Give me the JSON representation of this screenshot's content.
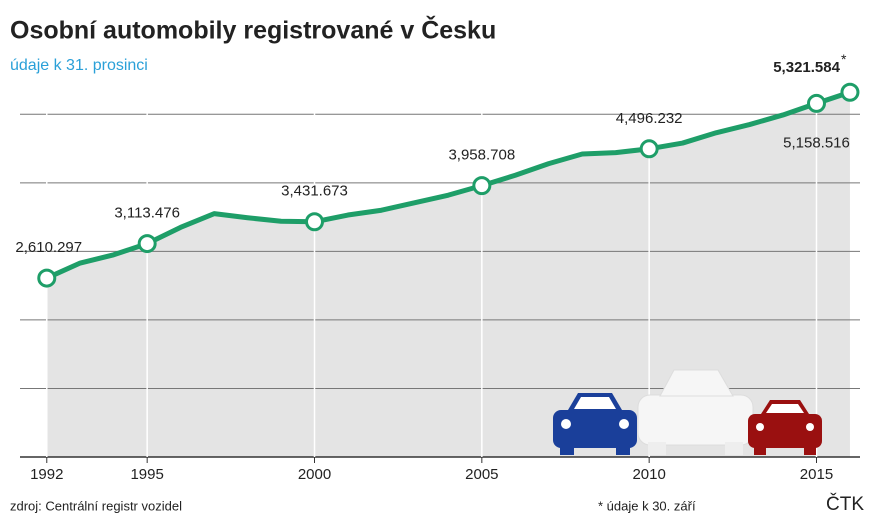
{
  "chart_data": {
    "type": "line",
    "title": "Osobní automobily registrované v Česku",
    "subtitle": "údaje k 31. prosinci",
    "x": [
      1992,
      1993,
      1994,
      1995,
      1996,
      1997,
      1998,
      1999,
      2000,
      2001,
      2002,
      2003,
      2004,
      2005,
      2006,
      2007,
      2008,
      2009,
      2010,
      2011,
      2012,
      2013,
      2014,
      2015,
      2016
    ],
    "series": [
      {
        "name": "Osobní automobily",
        "color": "#1e9e68",
        "values": [
          2610297,
          2830000,
          2950000,
          3113476,
          3350000,
          3550000,
          3490000,
          3440000,
          3431673,
          3530000,
          3600000,
          3710000,
          3820000,
          3958708,
          4110000,
          4280000,
          4420000,
          4440000,
          4496232,
          4580000,
          4730000,
          4850000,
          4990000,
          5158516,
          5321584
        ],
        "value_labels": [
          "2,610.297",
          null,
          null,
          "3,113.476",
          null,
          null,
          null,
          null,
          "3,431.673",
          null,
          null,
          null,
          null,
          "3,958.708",
          null,
          null,
          null,
          null,
          "4,496.232",
          null,
          null,
          null,
          null,
          "5,158.516",
          "5,321.584"
        ],
        "value_label_note": "*"
      }
    ],
    "xlim": [
      1991.2,
      2016.3
    ],
    "xticks": [
      1992,
      1995,
      2000,
      2005,
      2010,
      2015
    ],
    "ylim": [
      0,
      5500000
    ],
    "yticks": [
      0,
      1000000,
      2000000,
      3000000,
      4000000,
      5000000
    ],
    "grid": true,
    "source": "zdroj: Centrální registr vozidel",
    "footnote": "* údaje k 30. září",
    "credit": "ČTK"
  }
}
